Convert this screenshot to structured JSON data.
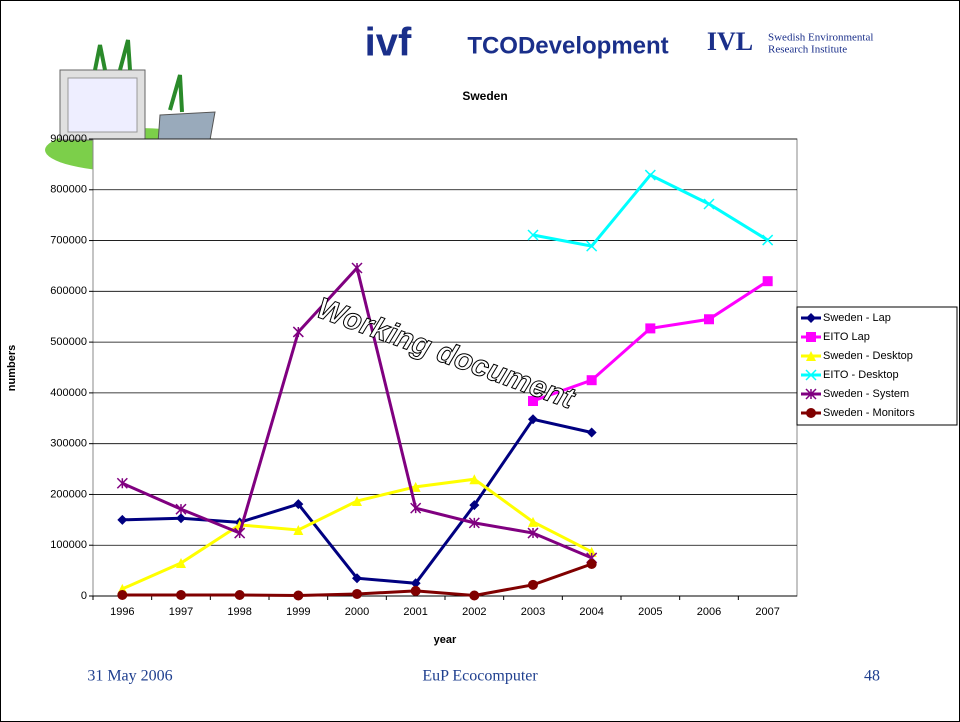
{
  "logos": {
    "ivf": "ivf",
    "tco": "TCODevelopment",
    "ivl": "IVL",
    "ivl_line1": "Swedish Environmental",
    "ivl_line2": "Research Institute"
  },
  "watermark": "Working document",
  "footer": {
    "date": "31 May 2006",
    "center": "EuP Ecocomputer",
    "page": "48"
  },
  "chart_data": {
    "type": "line",
    "title": "Sweden",
    "x_label": "year",
    "y_label": "numbers",
    "categories": [
      "1996",
      "1997",
      "1998",
      "1999",
      "2000",
      "2001",
      "2002",
      "2003",
      "2004",
      "2005",
      "2006",
      "2007"
    ],
    "ylim": [
      0,
      900000
    ],
    "yticks": [
      0,
      100000,
      200000,
      300000,
      400000,
      500000,
      600000,
      700000,
      800000,
      900000
    ],
    "grid": true,
    "legend": "right",
    "series": [
      {
        "name": "Sweden - Lap",
        "color": "#000080",
        "marker": "diamond",
        "values": [
          150000,
          153000,
          145000,
          181000,
          35000,
          25000,
          179000,
          348000,
          322000,
          null,
          null,
          null
        ]
      },
      {
        "name": "EITO Lap",
        "color": "#ff00ff",
        "marker": "square",
        "values": [
          null,
          null,
          null,
          null,
          null,
          null,
          null,
          384000,
          425000,
          527000,
          545000,
          620000
        ]
      },
      {
        "name": "Sweden - Desktop",
        "color": "#ffff00",
        "marker": "triangle",
        "values": [
          14000,
          65000,
          140000,
          130000,
          187000,
          215000,
          230000,
          146000,
          87000,
          null,
          null,
          null
        ]
      },
      {
        "name": "EITO - Desktop",
        "color": "#00ffff",
        "marker": "x",
        "values": [
          null,
          null,
          null,
          null,
          null,
          null,
          null,
          711000,
          689000,
          829000,
          772000,
          701000
        ]
      },
      {
        "name": "Sweden - System",
        "color": "#800080",
        "marker": "star",
        "values": [
          222000,
          171000,
          124000,
          520000,
          646000,
          173000,
          144000,
          124000,
          75000,
          null,
          null,
          null
        ]
      },
      {
        "name": "Sweden - Monitors",
        "color": "#800000",
        "marker": "circle",
        "values": [
          2000,
          2000,
          2000,
          1000,
          4000,
          10000,
          1000,
          22000,
          63000,
          null,
          null,
          null
        ]
      }
    ]
  }
}
